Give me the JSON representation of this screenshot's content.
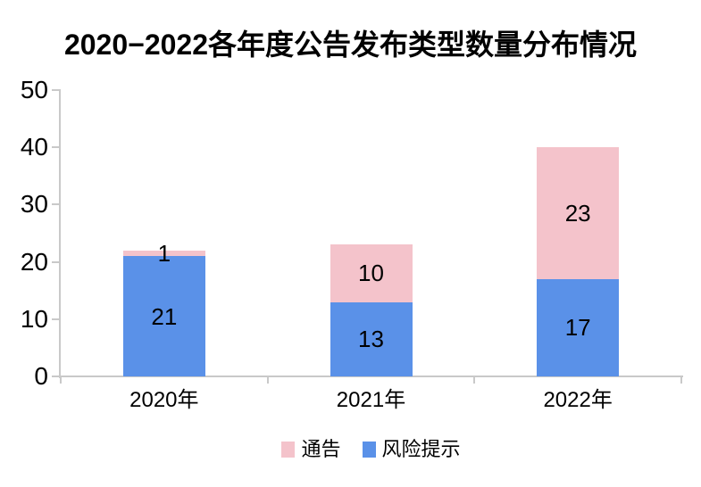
{
  "title": "2020−2022各年度公告发布类型数量分布情况",
  "chart_data": {
    "type": "bar",
    "stacked": true,
    "title": "2020−2022各年度公告发布类型数量分布情况",
    "categories": [
      "2020年",
      "2021年",
      "2022年"
    ],
    "series": [
      {
        "name": "通告",
        "color": "#f4c3cb",
        "values": [
          1,
          10,
          23
        ]
      },
      {
        "name": "风险提示",
        "color": "#5a91e8",
        "values": [
          21,
          13,
          17
        ]
      }
    ],
    "stack_order_bottom_to_top": [
      "风险提示",
      "通告"
    ],
    "bar_value_labels": true,
    "xlabel": "",
    "ylabel": "",
    "ylim": [
      0,
      50
    ],
    "yticks": [
      0,
      10,
      20,
      30,
      40,
      50
    ],
    "grid": false,
    "legend_position": "bottom"
  },
  "colors": {
    "background": "#ffffff",
    "axis": "#c9c9c9",
    "text": "#000000",
    "tonggao_pink": "#f4c3cb",
    "fengxiantishi_blue": "#5a91e8"
  }
}
